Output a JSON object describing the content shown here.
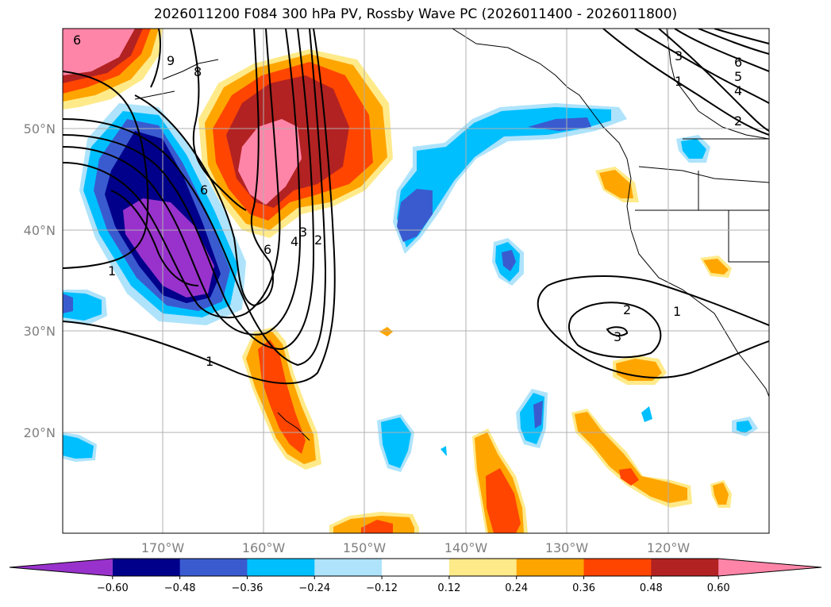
{
  "title": "2026011200 F084 300 hPa PV, Rossby Wave PC (2026011400 - 2026011800)",
  "map": {
    "lat_ticks": [
      "50°N",
      "40°N",
      "30°N",
      "20°N"
    ],
    "lon_ticks": [
      "170°W",
      "160°W",
      "150°W",
      "140°W",
      "130°W",
      "120°W"
    ],
    "grid": true
  },
  "colorbar": {
    "tick_labels": [
      "−0.60",
      "−0.48",
      "−0.36",
      "−0.24",
      "−0.12",
      "0.12",
      "0.24",
      "0.36",
      "0.48",
      "0.60"
    ],
    "colors": [
      "#9932cc",
      "#00008b",
      "#3a5bd0",
      "#00bfff",
      "#aee3fb",
      "#ffffff",
      "#ffea8a",
      "#ffa500",
      "#ff4500",
      "#b22222",
      "#ff85a8"
    ],
    "extend": "both"
  },
  "contour_labels": [
    "6",
    "9",
    "8",
    "6",
    "3",
    "4",
    "2",
    "6",
    "1",
    "1",
    "3",
    "6",
    "5",
    "4",
    "1",
    "2",
    "2",
    "1",
    "3"
  ]
}
